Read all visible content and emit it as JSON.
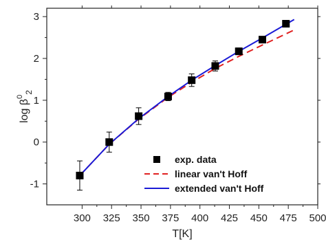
{
  "chart_data": {
    "type": "scatter",
    "title": "",
    "xlabel": "T[K]",
    "ylabel_main": "log β",
    "ylabel_sup": "0",
    "ylabel_sub": "2",
    "xlim": [
      270,
      500
    ],
    "ylim": [
      -1.5,
      3.2
    ],
    "x_ticks": [
      300,
      325,
      350,
      375,
      400,
      425,
      450,
      475,
      500
    ],
    "y_ticks": [
      -1,
      0,
      1,
      2,
      3
    ],
    "grid": false,
    "legend_position": "bottom-right",
    "series": [
      {
        "name": "exp. data",
        "kind": "markers",
        "color": "#000000",
        "x": [
          298,
          323,
          348,
          373,
          393,
          413,
          433,
          453,
          473
        ],
        "y": [
          -0.8,
          0.0,
          0.62,
          1.09,
          1.48,
          1.82,
          2.17,
          2.45,
          2.83
        ],
        "err": [
          0.35,
          0.24,
          0.2,
          0.1,
          0.15,
          0.12,
          0.08,
          0.06,
          0.06
        ]
      },
      {
        "name": "linear van't Hoff",
        "kind": "dashed-line",
        "color": "#e02020",
        "x": [
          298,
          323,
          348,
          373,
          393,
          413,
          433,
          453,
          480
        ],
        "y": [
          -0.8,
          -0.05,
          0.55,
          1.07,
          1.43,
          1.76,
          2.05,
          2.32,
          2.68
        ]
      },
      {
        "name": "extended van't Hoff",
        "kind": "solid-line",
        "color": "#1a1ad6",
        "x": [
          298,
          323,
          348,
          373,
          393,
          413,
          433,
          453,
          480
        ],
        "y": [
          -0.8,
          -0.05,
          0.56,
          1.09,
          1.48,
          1.83,
          2.17,
          2.49,
          2.93
        ]
      }
    ]
  }
}
